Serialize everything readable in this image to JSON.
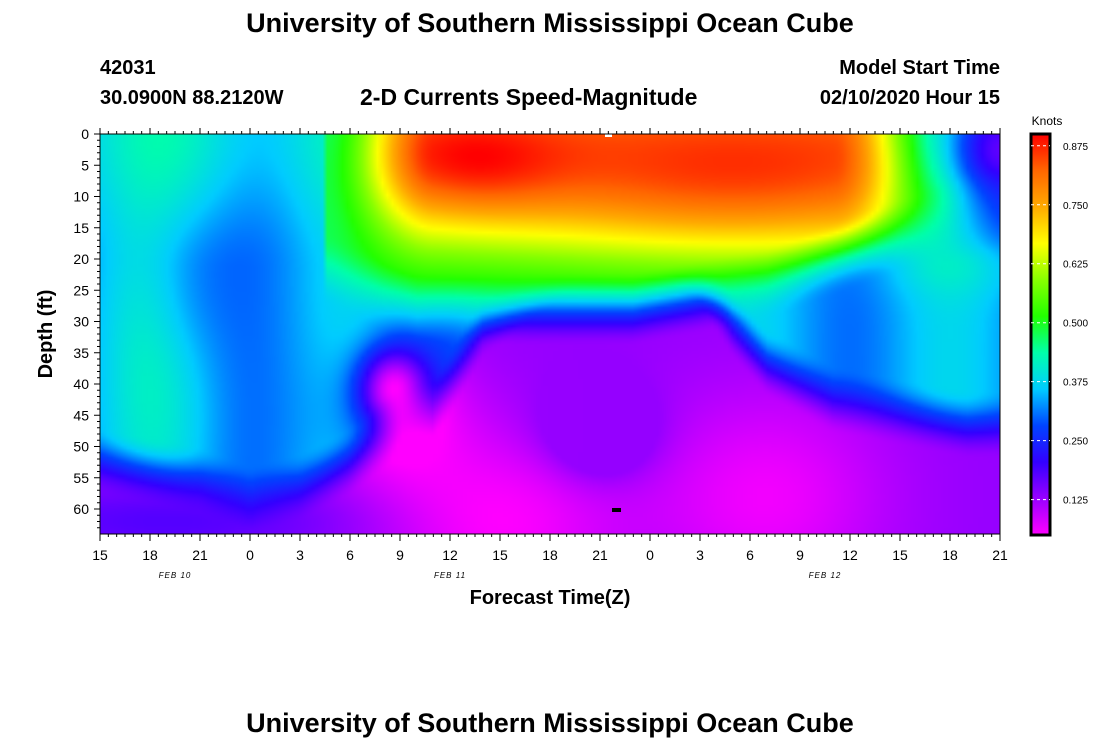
{
  "header": {
    "title": "University of Southern Mississippi Ocean Cube",
    "station_id": "42031",
    "station_coords": "30.0900N 88.2120W",
    "chart_title": "2-D Currents Speed-Magnitude",
    "model_start_label": "Model Start Time",
    "model_start_value": "02/10/2020 Hour 15"
  },
  "footer": {
    "title": "University of Southern Mississippi Ocean Cube"
  },
  "chart_data": {
    "type": "heatmap",
    "title": "2-D Currents Speed-Magnitude",
    "xlabel": "Forecast Time(Z)",
    "ylabel": "Depth (ft)",
    "x_tick_labels": [
      "15",
      "18",
      "21",
      "0",
      "3",
      "6",
      "9",
      "12",
      "15",
      "18",
      "21",
      "0",
      "3",
      "6",
      "9",
      "12",
      "15",
      "18",
      "21"
    ],
    "x_range_hours": [
      0,
      54
    ],
    "date_labels": [
      {
        "label": "FEB 10",
        "hour": 4.5
      },
      {
        "label": "FEB 11",
        "hour": 21
      },
      {
        "label": "FEB 12",
        "hour": 43.5
      }
    ],
    "y_ticks": [
      0,
      5,
      10,
      15,
      20,
      25,
      30,
      35,
      40,
      45,
      50,
      55,
      60
    ],
    "ylim": [
      0,
      64
    ],
    "y_inverted": true,
    "colorbar": {
      "title": "Knots",
      "ticks": [
        "0.875",
        "0.750",
        "0.625",
        "0.500",
        "0.375",
        "0.250",
        "0.125"
      ],
      "range": [
        0.05,
        0.9
      ],
      "colors": [
        "#ff00ff",
        "#9900ff",
        "#3300ff",
        "#0044ff",
        "#00ccff",
        "#00ffaa",
        "#22ff00",
        "#88ff00",
        "#ffff00",
        "#ffaa00",
        "#ff6600",
        "#ff0000"
      ]
    },
    "grid": false,
    "legend": "right"
  }
}
